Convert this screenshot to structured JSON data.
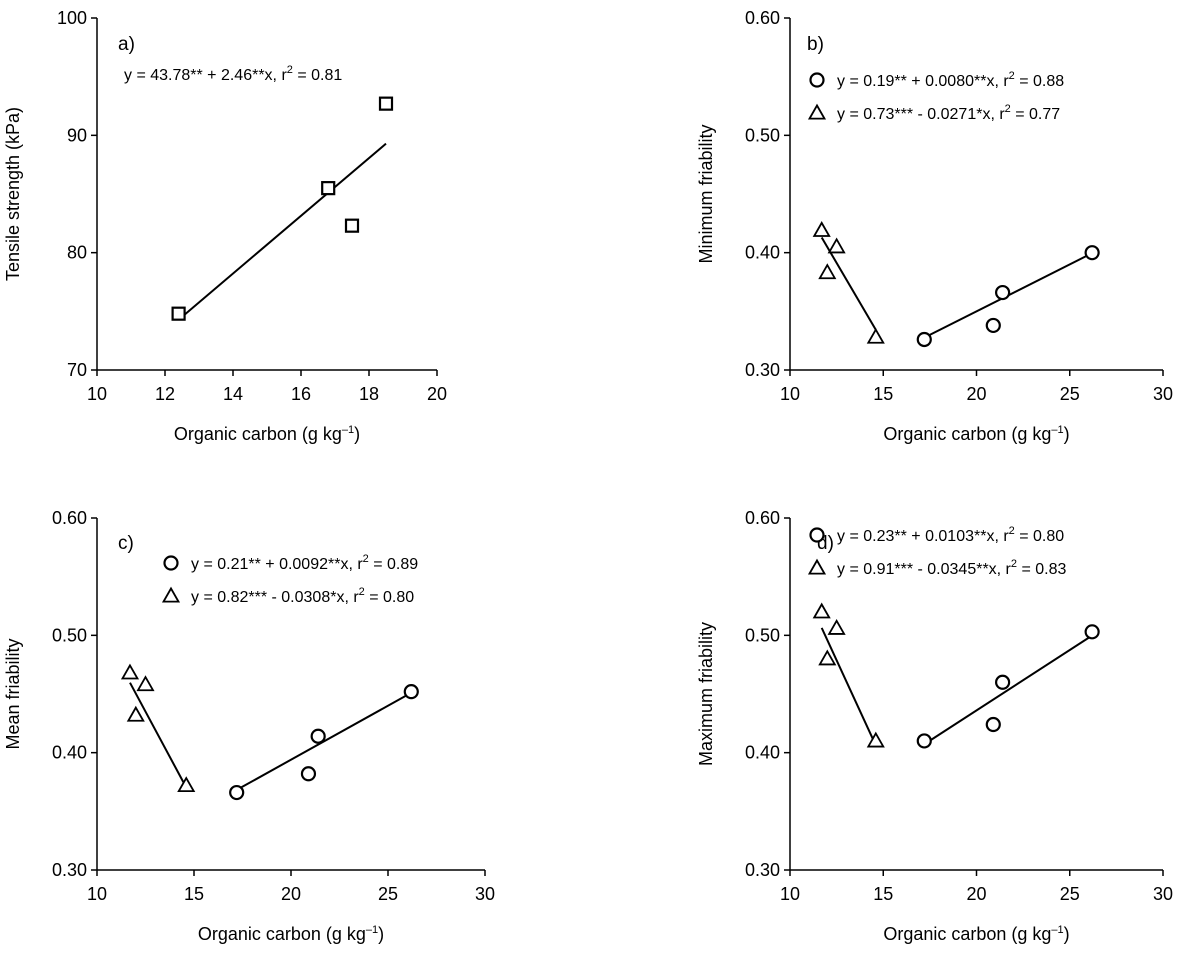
{
  "chart_data": [
    {
      "panel": "a)",
      "type": "scatter",
      "xlabel": "Organic carbon (g kg",
      "xlabel_sup": "–1",
      "xlabel_end": ")",
      "ylabel": "Tensile strength (kPa)",
      "xlim": [
        10,
        20
      ],
      "ylim": [
        70,
        100
      ],
      "xticks": [
        10,
        12,
        14,
        16,
        18,
        20
      ],
      "yticks": [
        70,
        80,
        90,
        100
      ],
      "ytick_labels": [
        "70",
        "80",
        "90",
        "100"
      ],
      "series": [
        {
          "marker": "square",
          "x": [
            12.4,
            16.8,
            17.5,
            18.5
          ],
          "y": [
            74.8,
            85.5,
            82.3,
            92.7
          ],
          "fit": {
            "x": [
              12.4,
              18.5
            ],
            "intercept": 43.78,
            "slope": 2.46
          },
          "equation": "y = 43.78** + 2.46**x,  r",
          "eq_sup": "2",
          "eq_end": " = 0.81"
        }
      ]
    },
    {
      "panel": "b)",
      "type": "scatter",
      "xlabel": "Organic carbon (g kg",
      "xlabel_sup": "–1",
      "xlabel_end": ")",
      "ylabel": "Minimum friability",
      "xlim": [
        10,
        30
      ],
      "ylim": [
        0.3,
        0.6
      ],
      "xticks": [
        10,
        15,
        20,
        25,
        30
      ],
      "yticks": [
        0.3,
        0.4,
        0.5,
        0.6
      ],
      "ytick_labels": [
        "0.30",
        "0.40",
        "0.50",
        "0.60"
      ],
      "series": [
        {
          "marker": "circle",
          "x": [
            17.2,
            20.9,
            21.4,
            26.2
          ],
          "y": [
            0.326,
            0.338,
            0.366,
            0.4
          ],
          "fit": {
            "x": [
              17.2,
              26.2
            ],
            "intercept": 0.19,
            "slope": 0.008
          },
          "equation": "y = 0.19** + 0.0080**x,  r",
          "eq_sup": "2",
          "eq_end": " = 0.88"
        },
        {
          "marker": "triangle",
          "x": [
            11.7,
            12.0,
            12.5,
            14.6
          ],
          "y": [
            0.419,
            0.383,
            0.405,
            0.328
          ],
          "fit": {
            "x": [
              11.7,
              14.6
            ],
            "intercept": 0.73,
            "slope": -0.0271
          },
          "equation": "y = 0.73*** - 0.0271*x,  r",
          "eq_sup": "2",
          "eq_end": " = 0.77"
        }
      ]
    },
    {
      "panel": "c)",
      "type": "scatter",
      "xlabel": "Organic carbon (g kg",
      "xlabel_sup": "–1",
      "xlabel_end": ")",
      "ylabel": "Mean friability",
      "xlim": [
        10,
        30
      ],
      "ylim": [
        0.3,
        0.6
      ],
      "xticks": [
        10,
        15,
        20,
        25,
        30
      ],
      "yticks": [
        0.3,
        0.4,
        0.5,
        0.6
      ],
      "ytick_labels": [
        "0.30",
        "0.40",
        "0.50",
        "0.60"
      ],
      "series": [
        {
          "marker": "circle",
          "x": [
            17.2,
            20.9,
            21.4,
            26.2
          ],
          "y": [
            0.366,
            0.382,
            0.414,
            0.452
          ],
          "fit": {
            "x": [
              17.2,
              26.2
            ],
            "intercept": 0.21,
            "slope": 0.0092
          },
          "equation": "y = 0.21** + 0.0092**x,  r",
          "eq_sup": "2",
          "eq_end": " = 0.89"
        },
        {
          "marker": "triangle",
          "x": [
            11.7,
            12.0,
            12.5,
            14.6
          ],
          "y": [
            0.468,
            0.432,
            0.458,
            0.372
          ],
          "fit": {
            "x": [
              11.7,
              14.6
            ],
            "intercept": 0.82,
            "slope": -0.0308
          },
          "equation": "y = 0.82*** - 0.0308*x,  r",
          "eq_sup": "2",
          "eq_end": " = 0.80"
        }
      ]
    },
    {
      "panel": "d)",
      "type": "scatter",
      "xlabel": "Organic carbon (g kg",
      "xlabel_sup": "–1",
      "xlabel_end": ")",
      "ylabel": "Maximum friability",
      "xlim": [
        10,
        30
      ],
      "ylim": [
        0.3,
        0.6
      ],
      "xticks": [
        10,
        15,
        20,
        25,
        30
      ],
      "yticks": [
        0.3,
        0.4,
        0.5,
        0.6
      ],
      "ytick_labels": [
        "0.30",
        "0.40",
        "0.50",
        "0.60"
      ],
      "series": [
        {
          "marker": "circle",
          "x": [
            17.2,
            20.9,
            21.4,
            26.2
          ],
          "y": [
            0.41,
            0.424,
            0.46,
            0.503
          ],
          "fit": {
            "x": [
              17.2,
              26.2
            ],
            "intercept": 0.23,
            "slope": 0.0103
          },
          "equation": "y = 0.23** + 0.0103**x,  r",
          "eq_sup": "2",
          "eq_end": " = 0.80"
        },
        {
          "marker": "triangle",
          "x": [
            11.7,
            12.0,
            12.5,
            14.6
          ],
          "y": [
            0.52,
            0.48,
            0.506,
            0.41
          ],
          "fit": {
            "x": [
              11.7,
              14.6
            ],
            "intercept": 0.91,
            "slope": -0.0345
          },
          "equation": "y = 0.91*** - 0.0345**x,  r",
          "eq_sup": "2",
          "eq_end": " = 0.83"
        }
      ]
    }
  ]
}
